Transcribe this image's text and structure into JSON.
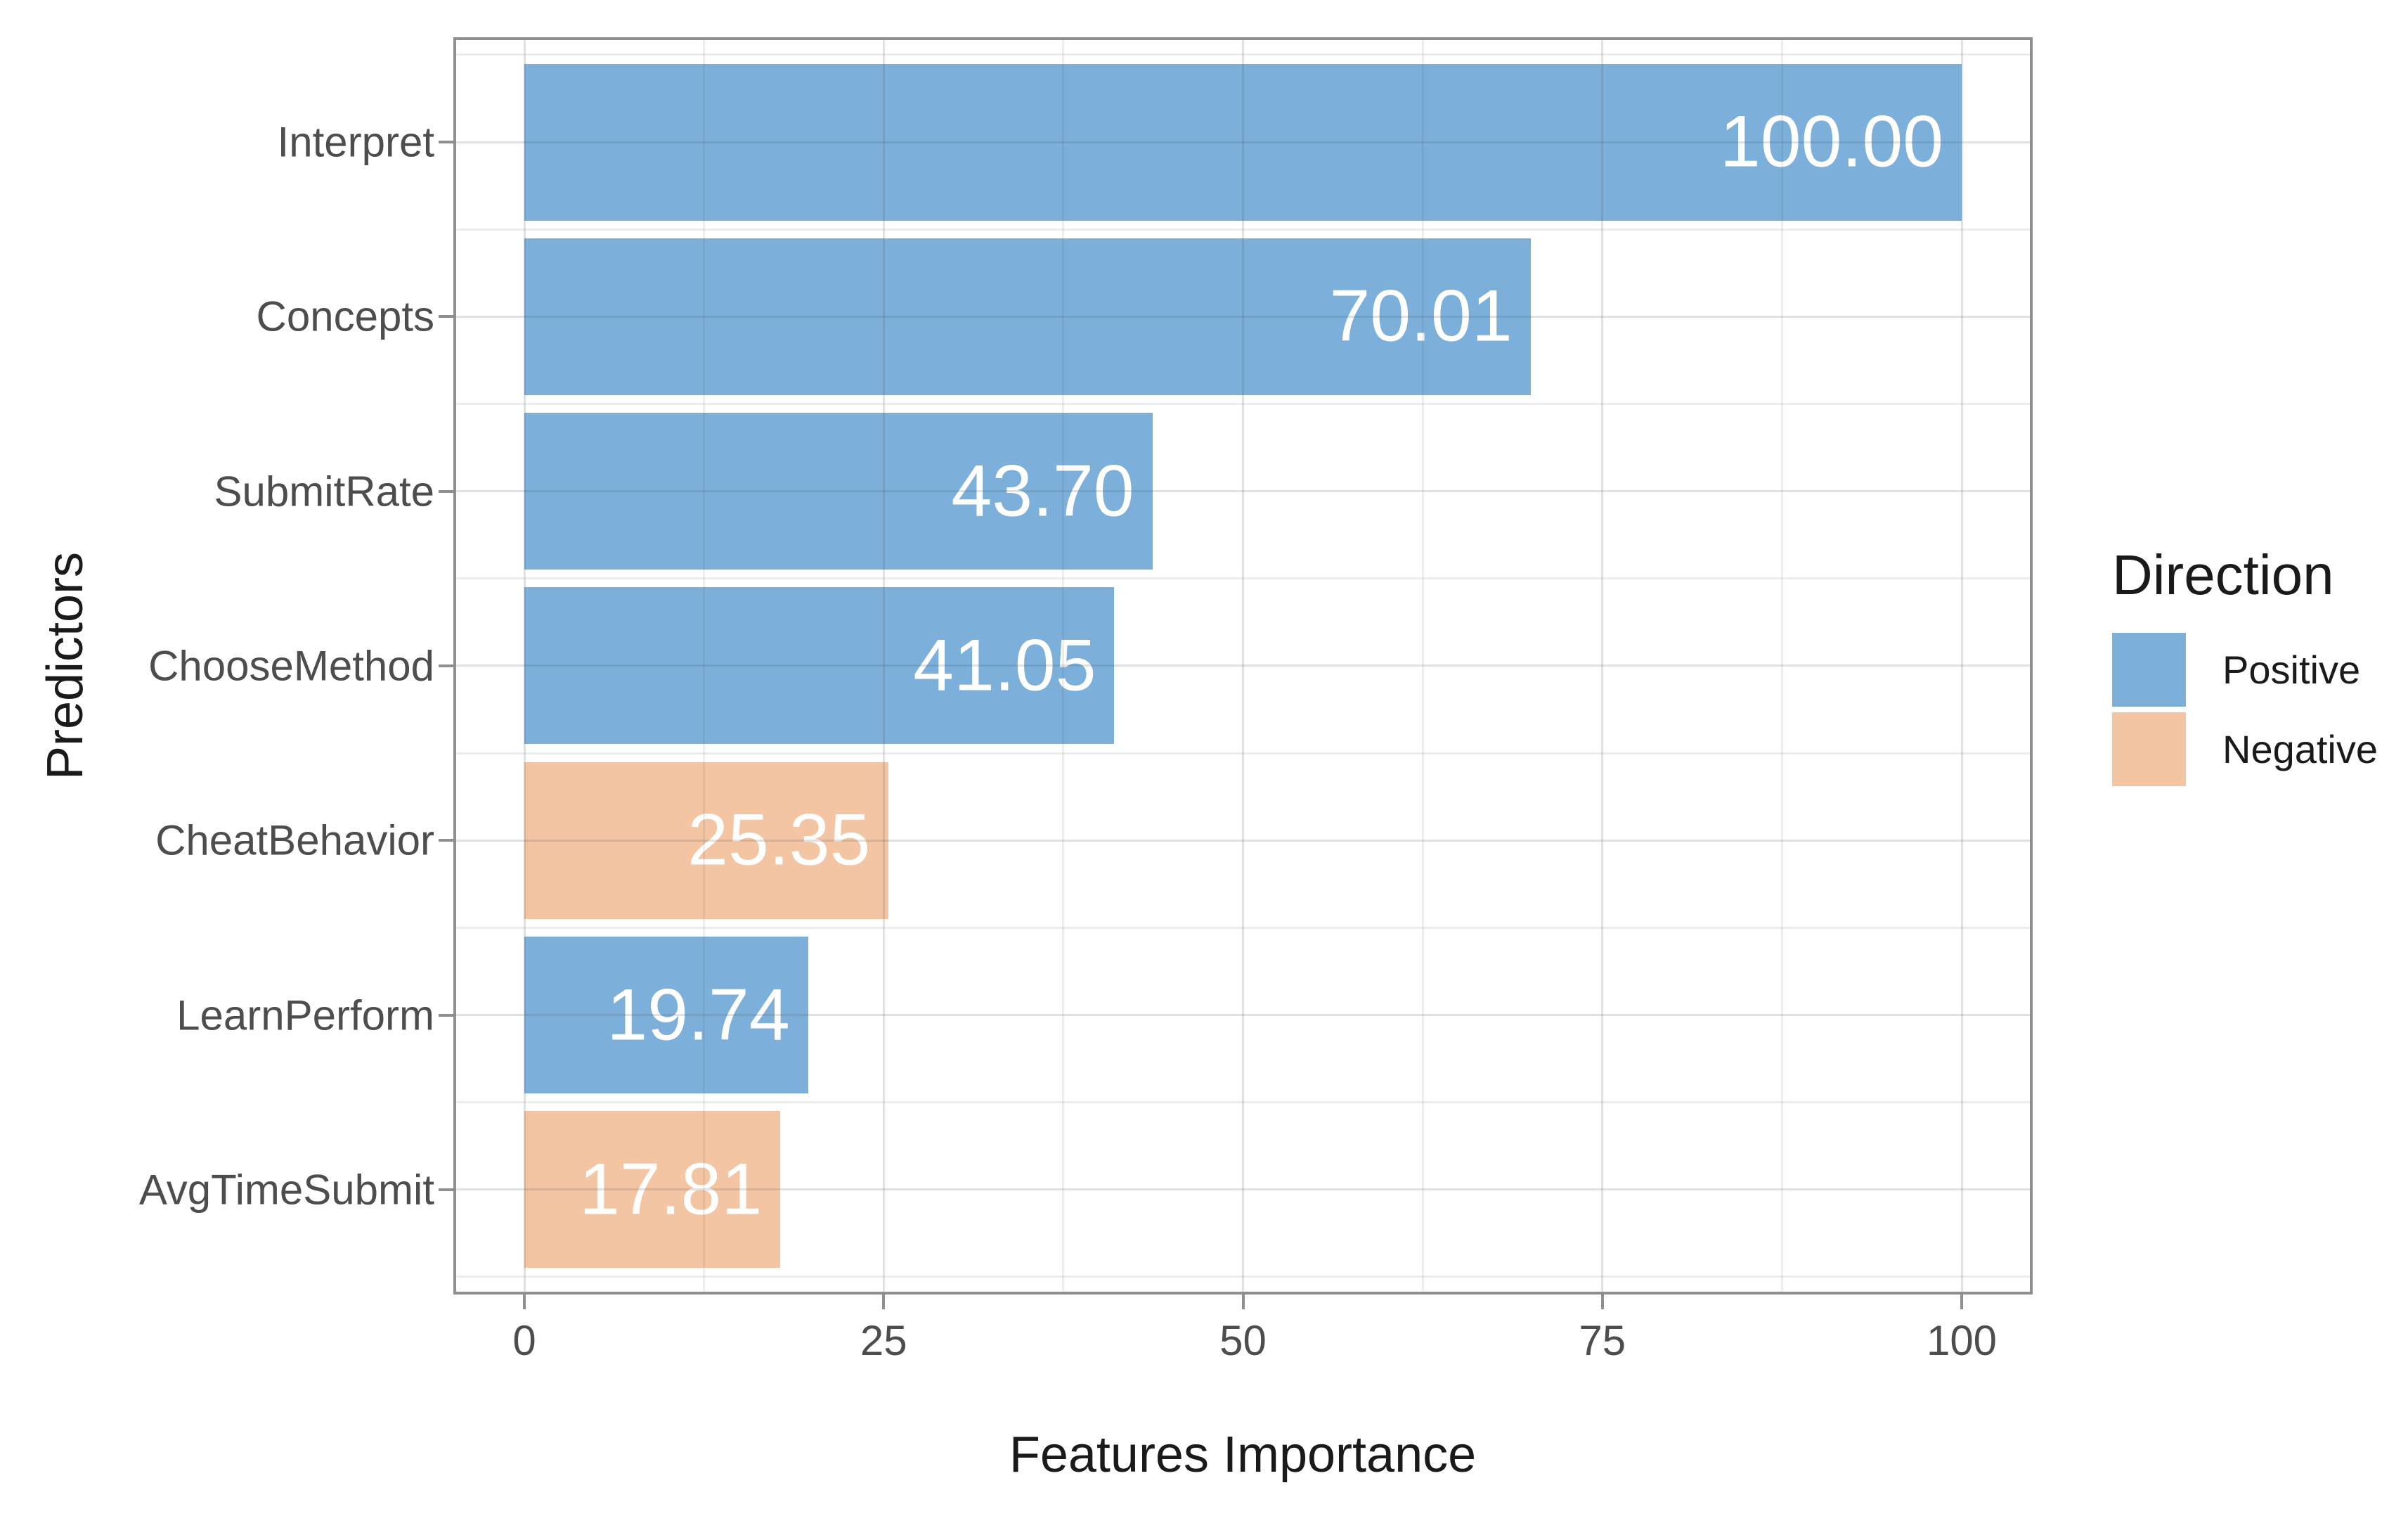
{
  "figure": {
    "background": "#ffffff",
    "panel_border_color": "#8f8f8f",
    "gridline_color": "#e2e2e2",
    "axis_text_color": "#4d4d4d",
    "title_text_color": "#1a1a1a",
    "legend": {
      "title": "Direction",
      "items": [
        {
          "label": "Positive",
          "color": "#7CB0DB"
        },
        {
          "label": "Negative",
          "color": "#F4C5A2"
        }
      ]
    }
  },
  "chart_data": {
    "type": "bar",
    "orientation": "horizontal",
    "title": "",
    "xlabel": "Features Importance",
    "ylabel": "Predictors",
    "categories": [
      "Interpret",
      "Concepts",
      "SubmitRate",
      "ChooseMethod",
      "CheatBehavior",
      "LearnPerform",
      "AvgTimeSubmit"
    ],
    "values": [
      100.0,
      70.01,
      43.7,
      41.05,
      25.35,
      19.74,
      17.81
    ],
    "value_labels": [
      "100.00",
      "70.01",
      "43.70",
      "41.05",
      "25.35",
      "19.74",
      "17.81"
    ],
    "directions": [
      "Positive",
      "Positive",
      "Positive",
      "Positive",
      "Negative",
      "Positive",
      "Negative"
    ],
    "bar_colors": {
      "Positive": "#7CB0DB",
      "Negative": "#F4C5A2"
    },
    "value_label_color": "#ffffff",
    "xlim": [
      0,
      100
    ],
    "x_ticks": [
      0,
      25,
      50,
      75,
      100
    ],
    "x_tick_labels": [
      "0",
      "25",
      "50",
      "75",
      "100"
    ],
    "x_minor_ticks": [
      12.5,
      37.5,
      62.5,
      87.5
    ],
    "grid": "major+minor",
    "legend_position": "right",
    "legend_title": "Direction"
  }
}
